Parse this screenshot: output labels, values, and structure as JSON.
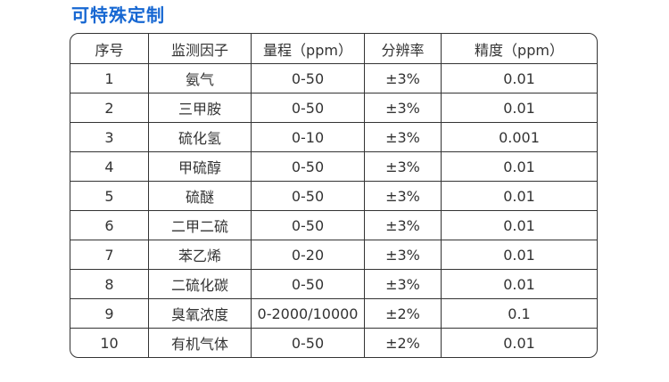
{
  "page": {
    "background": "#ffffff"
  },
  "title": {
    "text": "可特殊定制",
    "color": "#1667d2"
  },
  "table": {
    "border_color": "#333333",
    "text_color": "#333333",
    "headers": [
      "序号",
      "监测因子",
      "量程（ppm）",
      "分辨率",
      "精度（ppm）"
    ],
    "rows": [
      [
        "1",
        "氨气",
        "0-50",
        "±3%",
        "0.01"
      ],
      [
        "2",
        "三甲胺",
        "0-50",
        "±3%",
        "0.01"
      ],
      [
        "3",
        "硫化氢",
        "0-10",
        "±3%",
        "0.001"
      ],
      [
        "4",
        "甲硫醇",
        "0-50",
        "±3%",
        "0.01"
      ],
      [
        "5",
        "硫醚",
        "0-50",
        "±3%",
        "0.01"
      ],
      [
        "6",
        "二甲二硫",
        "0-50",
        "±3%",
        "0.01"
      ],
      [
        "7",
        "苯乙烯",
        "0-20",
        "±3%",
        "0.01"
      ],
      [
        "8",
        "二硫化碳",
        "0-50",
        "±3%",
        "0.01"
      ],
      [
        "9",
        "臭氧浓度",
        "0-2000/10000",
        "±2%",
        "0.1"
      ],
      [
        "10",
        "有机气体",
        "0-50",
        "±2%",
        "0.01"
      ]
    ]
  }
}
